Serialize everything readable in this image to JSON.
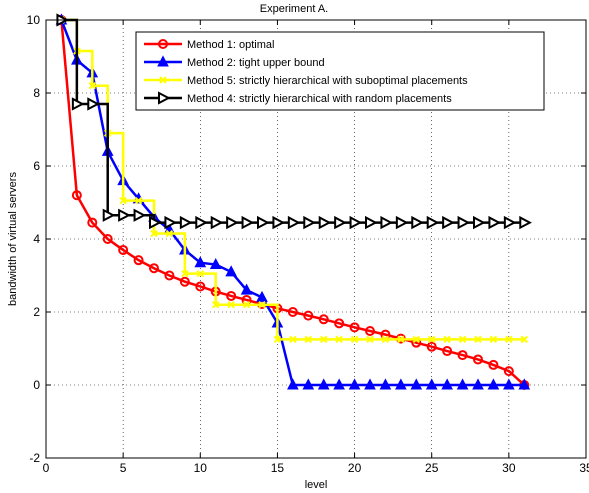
{
  "chart_data": {
    "type": "line",
    "title": "Experiment A.",
    "xlabel": "level",
    "ylabel": "bandwidth of virtual servers",
    "xlim": [
      0,
      35
    ],
    "ylim": [
      -2,
      10
    ],
    "xticks": [
      0,
      5,
      10,
      15,
      20,
      25,
      30,
      35
    ],
    "yticks": [
      -2,
      0,
      2,
      4,
      6,
      8,
      10
    ],
    "grid": true,
    "legend_position": "top-right",
    "series": [
      {
        "name": "Method 1: optimal",
        "color": "#ff0000",
        "marker": "circle",
        "step": false,
        "x": [
          1,
          2,
          3,
          4,
          5,
          6,
          7,
          8,
          9,
          10,
          11,
          12,
          13,
          14,
          15,
          16,
          17,
          18,
          19,
          20,
          21,
          22,
          23,
          24,
          25,
          26,
          27,
          28,
          29,
          30,
          31
        ],
        "y": [
          10,
          5.2,
          4.45,
          4.0,
          3.7,
          3.42,
          3.2,
          3.0,
          2.83,
          2.7,
          2.56,
          2.44,
          2.33,
          2.22,
          2.1,
          2.0,
          1.9,
          1.8,
          1.69,
          1.58,
          1.48,
          1.38,
          1.27,
          1.16,
          1.05,
          0.93,
          0.82,
          0.7,
          0.55,
          0.38,
          0.0
        ]
      },
      {
        "name": "Method 2: tight upper bound",
        "color": "#0000ff",
        "marker": "triangle-up",
        "step": false,
        "x": [
          1,
          2,
          3,
          4,
          5,
          6,
          7,
          8,
          9,
          10,
          11,
          12,
          13,
          14,
          15,
          16,
          17,
          18,
          19,
          20,
          21,
          22,
          23,
          24,
          25,
          26,
          27,
          28,
          29,
          30,
          31
        ],
        "y": [
          10,
          8.9,
          8.55,
          6.4,
          5.6,
          5.1,
          4.6,
          4.25,
          3.7,
          3.35,
          3.3,
          3.1,
          2.6,
          2.4,
          1.7,
          0,
          0,
          0,
          0,
          0,
          0,
          0,
          0,
          0,
          0,
          0,
          0,
          0,
          0,
          0,
          0
        ]
      },
      {
        "name": "Method 5: strictly hierarchical with suboptimal placements",
        "color": "#ffff00",
        "marker": "x",
        "step": true,
        "x": [
          1,
          2,
          3,
          4,
          5,
          6,
          7,
          8,
          9,
          10,
          11,
          12,
          13,
          14,
          15,
          16,
          17,
          18,
          19,
          20,
          21,
          22,
          23,
          24,
          25,
          26,
          27,
          28,
          29,
          30,
          31
        ],
        "y": [
          10,
          9.15,
          8.2,
          6.9,
          5.05,
          5.05,
          4.15,
          4.15,
          3.05,
          3.05,
          2.2,
          2.2,
          2.2,
          2.2,
          1.25,
          1.25,
          1.25,
          1.25,
          1.25,
          1.25,
          1.25,
          1.25,
          1.25,
          1.25,
          1.25,
          1.25,
          1.25,
          1.25,
          1.25,
          1.25,
          1.25
        ]
      },
      {
        "name": "Method 4: strictly hierarchical with random placements",
        "color": "#000000",
        "marker": "triangle-right",
        "step": true,
        "x": [
          1,
          2,
          3,
          4,
          5,
          6,
          7,
          8,
          9,
          10,
          11,
          12,
          13,
          14,
          15,
          16,
          17,
          18,
          19,
          20,
          21,
          22,
          23,
          24,
          25,
          26,
          27,
          28,
          29,
          30,
          31
        ],
        "y": [
          10,
          7.7,
          7.7,
          4.65,
          4.65,
          4.65,
          4.45,
          4.45,
          4.45,
          4.45,
          4.45,
          4.45,
          4.45,
          4.45,
          4.45,
          4.45,
          4.45,
          4.45,
          4.45,
          4.45,
          4.45,
          4.45,
          4.45,
          4.45,
          4.45,
          4.45,
          4.45,
          4.45,
          4.45,
          4.45,
          4.45
        ]
      }
    ]
  }
}
